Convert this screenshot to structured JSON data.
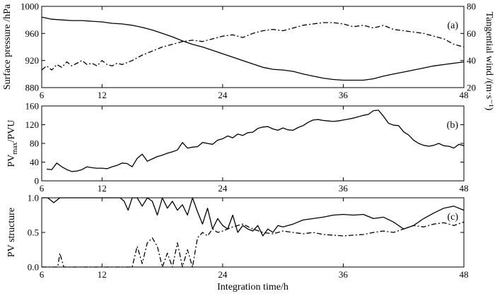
{
  "chart_data": [
    {
      "type": "line",
      "panel_label": "(a)",
      "xlabel": "",
      "ylabel": "Surface pressure /hPa",
      "ylabel_right": "Tangential wind /(m·s⁻¹)",
      "xlim": [
        6,
        48
      ],
      "ylim": [
        880,
        1000
      ],
      "ylim_right": [
        20,
        80
      ],
      "x_ticks": [
        6,
        12,
        24,
        36,
        48
      ],
      "y_ticks": [
        880,
        920,
        960,
        1000
      ],
      "y_ticks_right": [
        20,
        40,
        60,
        80
      ],
      "series": [
        {
          "axis": "left",
          "style": "solid",
          "x": [
            6,
            7,
            8,
            9,
            10,
            11,
            12,
            13,
            14,
            15,
            16,
            17,
            18,
            19,
            20,
            21,
            22,
            23,
            24,
            25,
            26,
            27,
            28,
            29,
            30,
            31,
            32,
            33,
            34,
            35,
            36,
            37,
            38,
            39,
            40,
            41,
            42,
            43,
            44,
            45,
            46,
            47,
            48
          ],
          "values": [
            984,
            981,
            980,
            979,
            979,
            978,
            977,
            975,
            974,
            972,
            969,
            965,
            960,
            955,
            949,
            944,
            940,
            935,
            930,
            925,
            920,
            915,
            910,
            907,
            906,
            904,
            900,
            897,
            894,
            892,
            891,
            891,
            891,
            893,
            897,
            900,
            903,
            906,
            909,
            912,
            914,
            916,
            918
          ]
        },
        {
          "axis": "right",
          "style": "dash-dot",
          "x": [
            6,
            6.5,
            7,
            7.5,
            8,
            8.5,
            9,
            9.5,
            10,
            10.5,
            11,
            11.5,
            12,
            12.5,
            13,
            13.5,
            14,
            15,
            16,
            17,
            18,
            19,
            20,
            21,
            22,
            23,
            24,
            25,
            26,
            27,
            28,
            29,
            30,
            31,
            32,
            33,
            34,
            35,
            36,
            37,
            38,
            39,
            40,
            41,
            42,
            43,
            44,
            45,
            46,
            47,
            48
          ],
          "values": [
            33,
            36,
            33,
            37,
            35,
            39,
            36,
            38,
            40,
            37,
            38,
            36,
            40,
            37,
            36,
            38,
            37,
            40,
            44,
            47,
            50,
            52,
            54,
            55,
            54,
            56,
            58,
            59,
            57,
            60,
            62,
            63,
            62,
            64,
            66,
            67,
            68,
            68,
            67,
            65,
            66,
            64,
            66,
            63,
            62,
            61,
            60,
            58,
            56,
            52,
            50
          ]
        }
      ]
    },
    {
      "type": "line",
      "panel_label": "(b)",
      "xlabel": "",
      "ylabel": "PV",
      "ylabel_sub": "max",
      "ylabel_suffix": "/PVU",
      "xlim": [
        6,
        48
      ],
      "ylim": [
        0,
        160
      ],
      "x_ticks": [
        6,
        12,
        24,
        36,
        48
      ],
      "y_ticks": [
        0,
        40,
        80,
        120,
        160
      ],
      "series": [
        {
          "style": "solid",
          "x": [
            6.5,
            7,
            7.5,
            8,
            8.5,
            9,
            9.5,
            10,
            10.5,
            11,
            11.5,
            12,
            12.5,
            13,
            13.5,
            14,
            14.5,
            15,
            15.5,
            16,
            16.5,
            17,
            17.5,
            18,
            18.5,
            19,
            19.5,
            20,
            20.5,
            21,
            21.5,
            22,
            22.5,
            23,
            23.5,
            24,
            24.5,
            25,
            25.5,
            26,
            26.5,
            27,
            27.5,
            28,
            28.5,
            29,
            29.5,
            30,
            30.5,
            31,
            31.5,
            32,
            32.5,
            33,
            33.5,
            34,
            34.5,
            35,
            35.5,
            36,
            36.5,
            37,
            37.5,
            38,
            38.5,
            39,
            39.5,
            40,
            40.5,
            41,
            41.5,
            42,
            42.5,
            43,
            43.5,
            44,
            44.5,
            45,
            45.5,
            46,
            46.5,
            47,
            47.5,
            48
          ],
          "values": [
            25,
            24,
            38,
            30,
            24,
            20,
            21,
            24,
            30,
            28,
            27,
            27,
            26,
            30,
            33,
            38,
            37,
            30,
            48,
            57,
            42,
            47,
            52,
            55,
            59,
            62,
            66,
            82,
            70,
            72,
            73,
            82,
            80,
            78,
            87,
            90,
            96,
            92,
            100,
            97,
            103,
            104,
            112,
            115,
            116,
            111,
            108,
            113,
            109,
            108,
            114,
            118,
            125,
            130,
            131,
            129,
            128,
            127,
            128,
            130,
            132,
            134,
            137,
            140,
            142,
            150,
            151,
            138,
            123,
            119,
            118,
            105,
            98,
            87,
            80,
            76,
            74,
            76,
            80,
            75,
            74,
            70,
            78,
            75
          ]
        }
      ]
    },
    {
      "type": "line",
      "panel_label": "(c)",
      "xlabel": "Integration time/h",
      "ylabel": "PV structure",
      "xlim": [
        6,
        48
      ],
      "ylim": [
        0,
        1
      ],
      "x_ticks": [
        6,
        12,
        24,
        36,
        48
      ],
      "y_ticks": [
        0.0,
        0.5,
        1.0
      ],
      "y_tick_labels": [
        "0.0",
        "0.5",
        "1.0"
      ],
      "series": [
        {
          "style": "solid",
          "x": [
            6,
            6.6,
            7.2,
            7.8,
            8.4,
            9,
            10,
            11,
            12,
            13,
            13.8,
            14.2,
            14.6,
            15,
            15.5,
            16,
            16.5,
            17,
            17.5,
            18,
            18.5,
            19,
            19.5,
            20,
            20.5,
            21,
            21.5,
            22,
            22.5,
            23,
            23.5,
            24,
            24.5,
            25,
            25.5,
            26,
            26.5,
            27,
            27.5,
            28,
            28.5,
            29,
            29.5,
            30,
            31,
            32,
            33,
            34,
            35,
            36,
            37,
            38,
            39,
            40,
            41,
            42,
            43,
            44,
            45,
            46,
            47,
            48
          ],
          "values": [
            1.0,
            1.0,
            0.93,
            1.0,
            1.0,
            1.0,
            1.0,
            1.0,
            1.0,
            1.0,
            1.0,
            0.95,
            0.82,
            1.0,
            1.0,
            0.88,
            1.0,
            0.95,
            0.75,
            1.0,
            0.85,
            0.95,
            0.82,
            0.9,
            0.75,
            1.0,
            0.8,
            0.62,
            0.85,
            0.55,
            0.7,
            0.6,
            0.55,
            0.75,
            0.5,
            0.6,
            0.55,
            0.52,
            0.6,
            0.45,
            0.55,
            0.5,
            0.6,
            0.58,
            0.62,
            0.68,
            0.7,
            0.72,
            0.75,
            0.76,
            0.75,
            0.76,
            0.7,
            0.72,
            0.65,
            0.55,
            0.6,
            0.7,
            0.78,
            0.85,
            0.88,
            0.82
          ]
        },
        {
          "style": "dash-dot",
          "x": [
            6,
            7,
            7.6,
            7.8,
            8.2,
            9,
            10,
            11,
            12,
            13,
            14,
            15,
            15.5,
            16,
            16.5,
            17,
            17.5,
            18,
            18.5,
            19,
            19.5,
            20,
            20.5,
            21,
            21.5,
            22,
            22.5,
            23,
            23.5,
            24,
            25,
            26,
            27,
            28,
            29,
            30,
            31,
            32,
            33,
            34,
            35,
            36,
            37,
            38,
            39,
            40,
            41,
            42,
            43,
            44,
            45,
            46,
            47,
            48
          ],
          "values": [
            0.0,
            0.0,
            0.0,
            0.2,
            0.0,
            0.0,
            0.0,
            0.0,
            0.0,
            0.0,
            0.0,
            0.0,
            0.3,
            0.05,
            0.35,
            0.42,
            0.3,
            0.0,
            0.2,
            0.0,
            0.35,
            0.0,
            0.25,
            0.0,
            0.42,
            0.5,
            0.45,
            0.55,
            0.5,
            0.52,
            0.58,
            0.62,
            0.55,
            0.5,
            0.48,
            0.52,
            0.5,
            0.48,
            0.5,
            0.47,
            0.46,
            0.45,
            0.46,
            0.47,
            0.5,
            0.52,
            0.5,
            0.55,
            0.6,
            0.58,
            0.62,
            0.64,
            0.6,
            0.65
          ]
        }
      ]
    }
  ]
}
